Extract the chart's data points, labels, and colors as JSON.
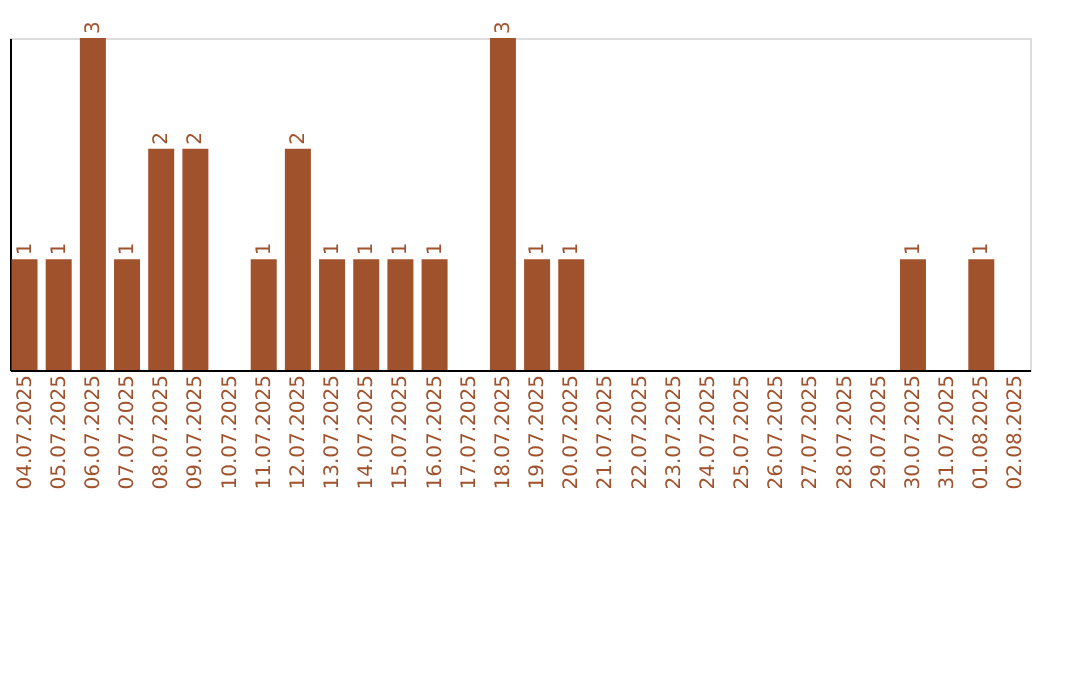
{
  "chart_data": {
    "type": "bar",
    "categories": [
      "04.07.2025",
      "05.07.2025",
      "06.07.2025",
      "07.07.2025",
      "08.07.2025",
      "09.07.2025",
      "10.07.2025",
      "11.07.2025",
      "12.07.2025",
      "13.07.2025",
      "14.07.2025",
      "15.07.2025",
      "16.07.2025",
      "17.07.2025",
      "18.07.2025",
      "19.07.2025",
      "20.07.2025",
      "21.07.2025",
      "22.07.2025",
      "23.07.2025",
      "24.07.2025",
      "25.07.2025",
      "26.07.2025",
      "27.07.2025",
      "28.07.2025",
      "29.07.2025",
      "30.07.2025",
      "31.07.2025",
      "01.08.2025",
      "02.08.2025"
    ],
    "values": [
      1,
      1,
      3,
      1,
      2,
      2,
      0,
      1,
      2,
      1,
      1,
      1,
      1,
      0,
      3,
      1,
      1,
      0,
      0,
      0,
      0,
      0,
      0,
      0,
      0,
      0,
      1,
      0,
      1,
      0
    ],
    "value_labels": [
      "1",
      "1",
      "3",
      "1",
      "2",
      "2",
      null,
      "1",
      "2",
      "1",
      "1",
      "1",
      "1",
      null,
      "3",
      "1",
      "1",
      null,
      null,
      null,
      null,
      null,
      null,
      null,
      null,
      null,
      "1",
      null,
      "1",
      null
    ],
    "color": "#a0522d",
    "ylim": [
      0,
      3
    ],
    "tick_labels": "x",
    "grid": false
  }
}
